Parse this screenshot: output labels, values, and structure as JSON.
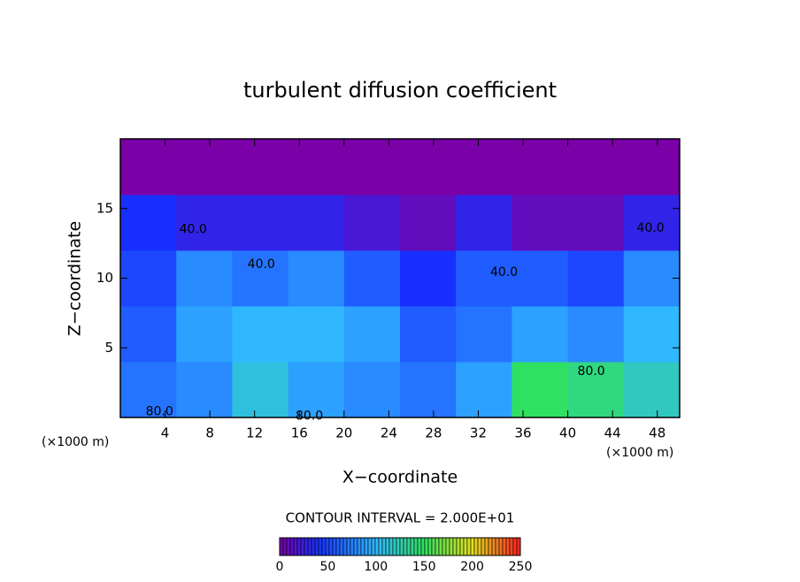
{
  "chart_data": {
    "type": "heatmap",
    "title": "turbulent diffusion coefficient",
    "xlabel": "X−coordinate",
    "ylabel": "Z−coordinate",
    "x_unit_left": "(×1000 m)",
    "x_unit_right": "(×1000 m)",
    "note": "CONTOUR INTERVAL = 2.000E+01",
    "xlim": [
      0,
      50
    ],
    "xticks": [
      4,
      8,
      12,
      16,
      20,
      24,
      28,
      32,
      36,
      40,
      44,
      48
    ],
    "ylim": [
      0,
      20
    ],
    "yticks": [
      5,
      10,
      15
    ],
    "xbins": [
      0,
      5,
      10,
      15,
      20,
      25,
      30,
      35,
      40,
      45,
      50
    ],
    "zbins": [
      0,
      4,
      8,
      12,
      16,
      20
    ],
    "z": [
      [
        70,
        80,
        110,
        90,
        80,
        70,
        90,
        150,
        140,
        120
      ],
      [
        60,
        90,
        100,
        100,
        90,
        60,
        70,
        90,
        80,
        100
      ],
      [
        50,
        80,
        70,
        80,
        60,
        40,
        60,
        60,
        50,
        80
      ],
      [
        40,
        30,
        30,
        30,
        20,
        10,
        30,
        10,
        10,
        30
      ],
      [
        0,
        0,
        0,
        0,
        0,
        0,
        0,
        0,
        0,
        0
      ]
    ],
    "contour_labels": [
      {
        "x": 6.5,
        "z": 13.5,
        "value": 40,
        "label": "40.0"
      },
      {
        "x": 12.6,
        "z": 11.0,
        "value": 40,
        "label": "40.0"
      },
      {
        "x": 34.3,
        "z": 10.4,
        "value": 40,
        "label": "40.0"
      },
      {
        "x": 47.4,
        "z": 13.6,
        "value": 40,
        "label": "40.0"
      },
      {
        "x": 3.5,
        "z": 0.4,
        "value": 80,
        "label": "80.0"
      },
      {
        "x": 16.9,
        "z": 0.1,
        "value": 80,
        "label": "80.0"
      },
      {
        "x": 42.1,
        "z": 3.3,
        "value": 80,
        "label": "80.0"
      }
    ],
    "clim": [
      0,
      250
    ],
    "colorbar_ticks": [
      0,
      50,
      100,
      150,
      200,
      250
    ],
    "colorscale": [
      [
        0,
        "#7a00a8"
      ],
      [
        40,
        "#1830ff"
      ],
      [
        100,
        "#30b8ff"
      ],
      [
        150,
        "#30e060"
      ],
      [
        200,
        "#e0e020"
      ],
      [
        250,
        "#ff2020"
      ]
    ]
  }
}
